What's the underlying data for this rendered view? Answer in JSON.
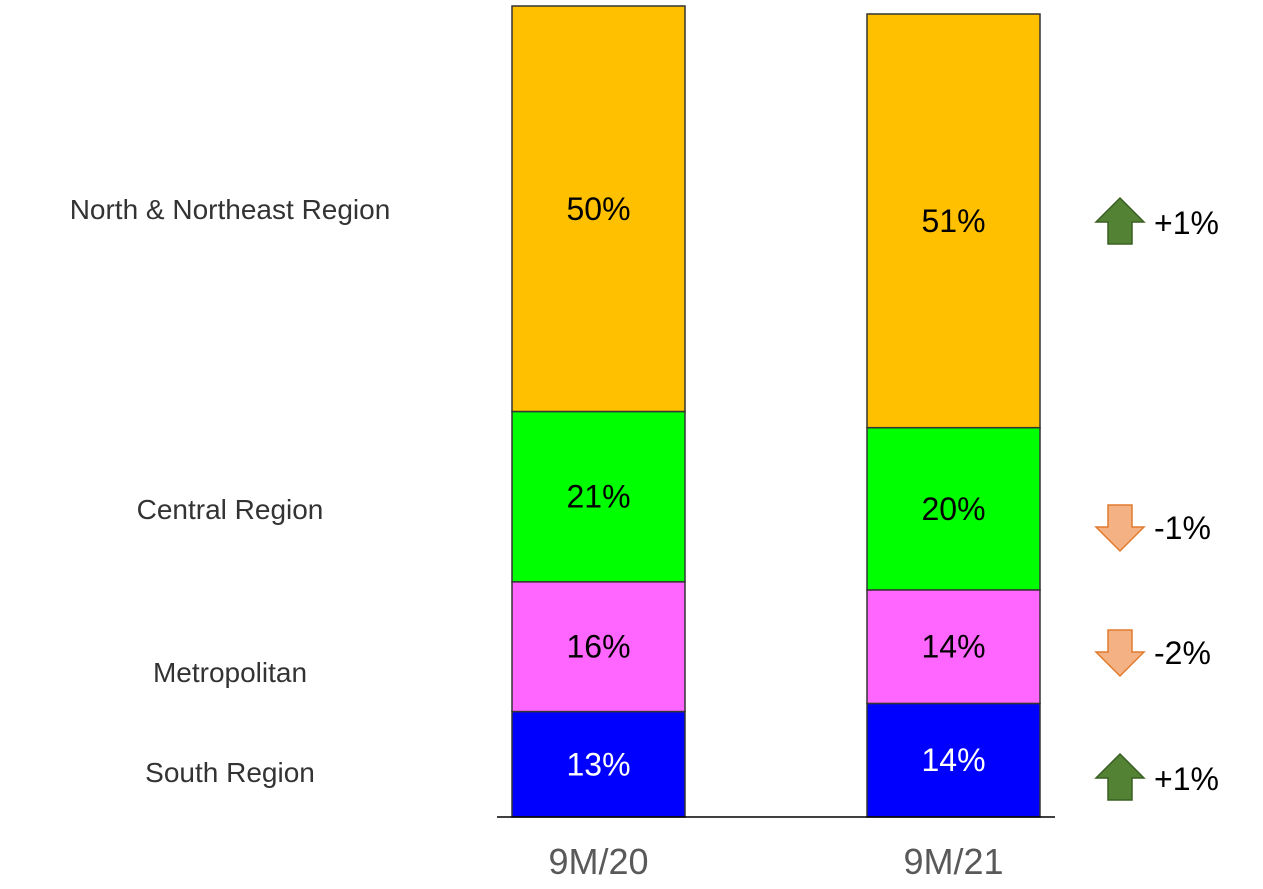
{
  "chart_data": {
    "type": "bar",
    "stacked": true,
    "normalized": true,
    "categories": [
      "9M/20",
      "9M/21"
    ],
    "series": [
      {
        "name": "South Region",
        "values": [
          13,
          14
        ],
        "color": "#0000FF",
        "label_color": "#FFFFFF",
        "labels": [
          "13%",
          "14%"
        ]
      },
      {
        "name": "Metropolitan",
        "values": [
          16,
          14
        ],
        "color": "#FF66FF",
        "label_color": "#000000",
        "labels": [
          "16%",
          "14%"
        ]
      },
      {
        "name": "Central Region",
        "values": [
          21,
          20
        ],
        "color": "#00FF00",
        "label_color": "#000000",
        "labels": [
          "21%",
          "20%"
        ]
      },
      {
        "name": "North & Northeast Region",
        "values": [
          50,
          51
        ],
        "color": "#FFC000",
        "label_color": "#000000",
        "labels": [
          "50%",
          "51%"
        ]
      }
    ],
    "changes": [
      {
        "series": "North & Northeast Region",
        "direction": "up",
        "label": "+1%",
        "color": "#548235"
      },
      {
        "series": "Central Region",
        "direction": "down",
        "label": "-1%",
        "color": "#F4B183"
      },
      {
        "series": "Metropolitan",
        "direction": "down",
        "label": "-2%",
        "color": "#F4B183"
      },
      {
        "series": "South Region",
        "direction": "up",
        "label": "+1%",
        "color": "#548235"
      }
    ],
    "legend": "left",
    "grid": false
  }
}
